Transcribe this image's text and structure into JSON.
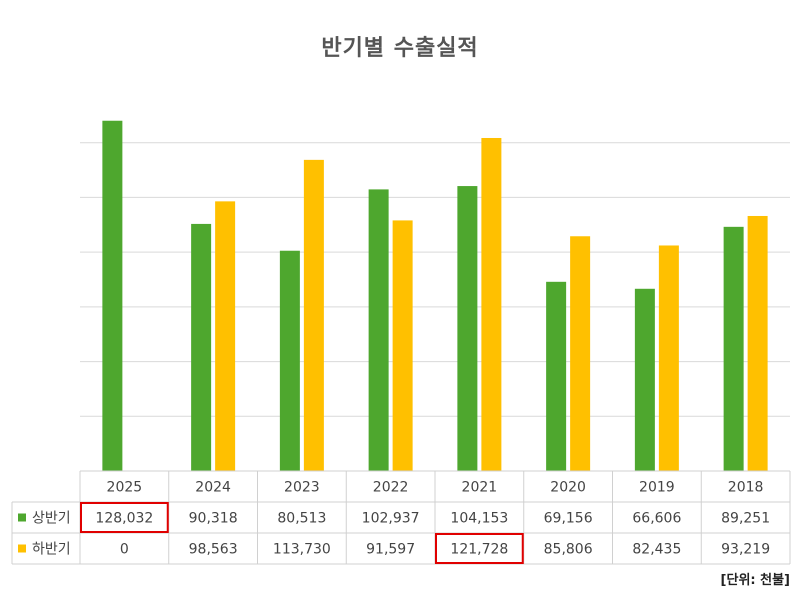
{
  "chart_data": {
    "type": "bar",
    "title": "반기별 수출실적",
    "unit_note": "[단위: 천불]",
    "categories": [
      "2025",
      "2024",
      "2023",
      "2022",
      "2021",
      "2020",
      "2019",
      "2018"
    ],
    "series": [
      {
        "name": "상반기",
        "color": "#4ea72e",
        "values": [
          128032,
          90318,
          80513,
          102937,
          104153,
          69156,
          66606,
          89251
        ],
        "labels": [
          "128,032",
          "90,318",
          "80,513",
          "102,937",
          "104,153",
          "69,156",
          "66,606",
          "89,251"
        ]
      },
      {
        "name": "하반기",
        "color": "#ffc000",
        "values": [
          0,
          98563,
          113730,
          91597,
          121728,
          85806,
          82435,
          93219
        ],
        "labels": [
          "0",
          "98,563",
          "113,730",
          "91,597",
          "121,728",
          "85,806",
          "82,435",
          "93,219"
        ]
      }
    ],
    "ylim": [
      0,
      140000
    ],
    "grid": true,
    "legend": "data-table",
    "highlighted_cells": [
      {
        "series": "상반기",
        "category": "2025"
      },
      {
        "series": "하반기",
        "category": "2021"
      }
    ],
    "highlight_color": "#e00000"
  }
}
